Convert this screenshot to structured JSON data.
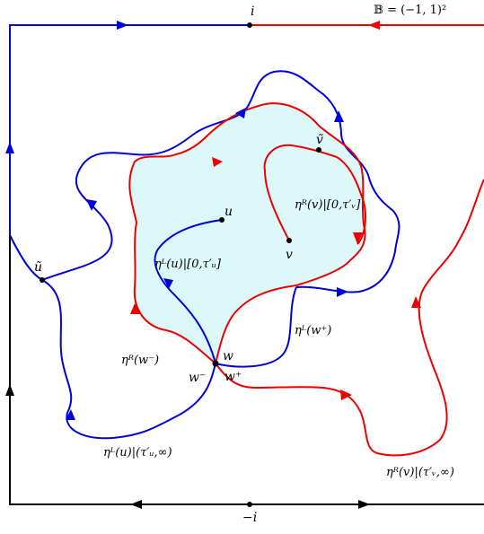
{
  "figure": {
    "domain_label": "𝔹 = (−1, 1)²",
    "labels": {
      "top_point": "i",
      "bottom_point": "−i",
      "u_tilde": "ũ",
      "v_tilde": "ṽ",
      "u": "u",
      "v": "v",
      "w": "w",
      "w_minus": "w⁻",
      "w_plus": "w⁺",
      "eta_L_u_local": "ηᴸ(u)|[0,τ′ᵤ]",
      "eta_R_v_local": "ηᴿ(v)|[0,τ′ᵥ]",
      "eta_L_w_plus": "ηᴸ(w⁺)",
      "eta_R_w_minus": "ηᴿ(w⁻)",
      "eta_L_u_tail": "ηᴸ(u)|(τ′ᵤ,∞)",
      "eta_R_v_tail": "ηᴿ(v)|(τ′ᵥ,∞)"
    },
    "colors": {
      "blue": "#0000dd",
      "red": "#ee0000",
      "black": "#000000",
      "fill": "#ddf8f8"
    }
  }
}
